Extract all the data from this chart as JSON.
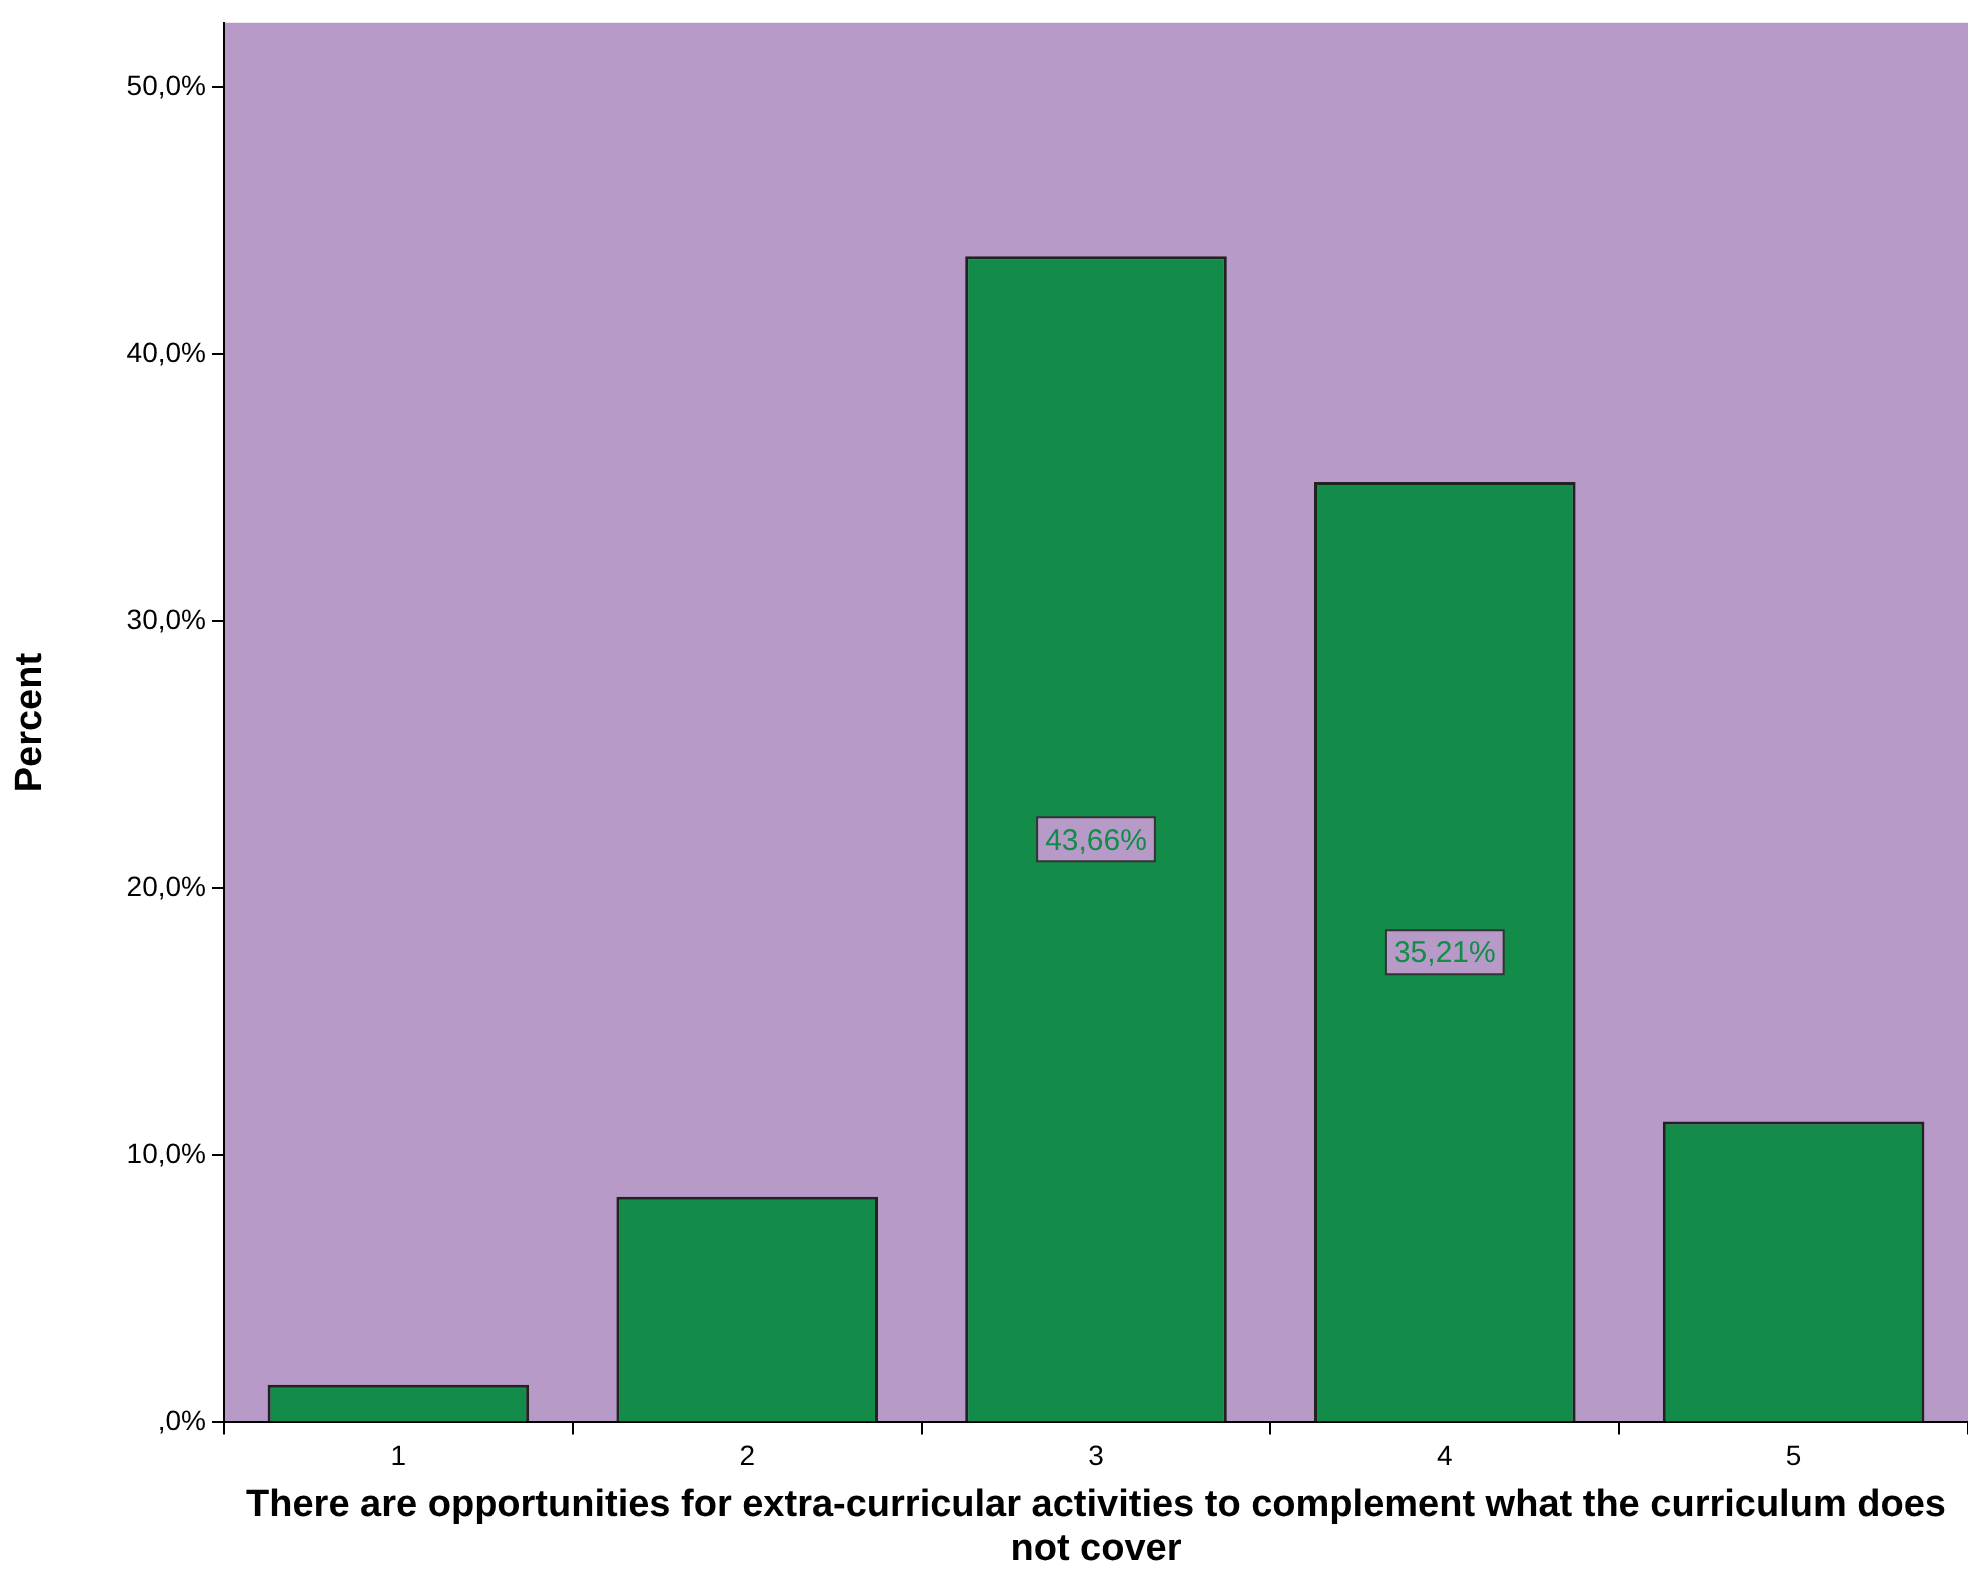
{
  "chart_data": {
    "type": "bar",
    "xlabel": "There are opportunities for extra-curricular activities to complement what the curriculum does not cover",
    "ylabel": "Percent",
    "categories": [
      "1",
      "2",
      "3",
      "4",
      "5"
    ],
    "values": [
      1.41,
      8.45,
      43.66,
      35.21,
      11.27
    ],
    "value_labels": [
      null,
      null,
      "43,66%",
      "35,21%",
      null
    ],
    "color": "#128c48",
    "ylim": [
      0,
      52.4
    ],
    "yticks": [
      {
        "value": 0,
        "label": ",0%"
      },
      {
        "value": 10,
        "label": "10,0%"
      },
      {
        "value": 20,
        "label": "20,0%"
      },
      {
        "value": 30,
        "label": "30,0%"
      },
      {
        "value": 40,
        "label": "40,0%"
      },
      {
        "value": 50,
        "label": "50,0%"
      }
    ],
    "grid": false,
    "legend": false
  }
}
